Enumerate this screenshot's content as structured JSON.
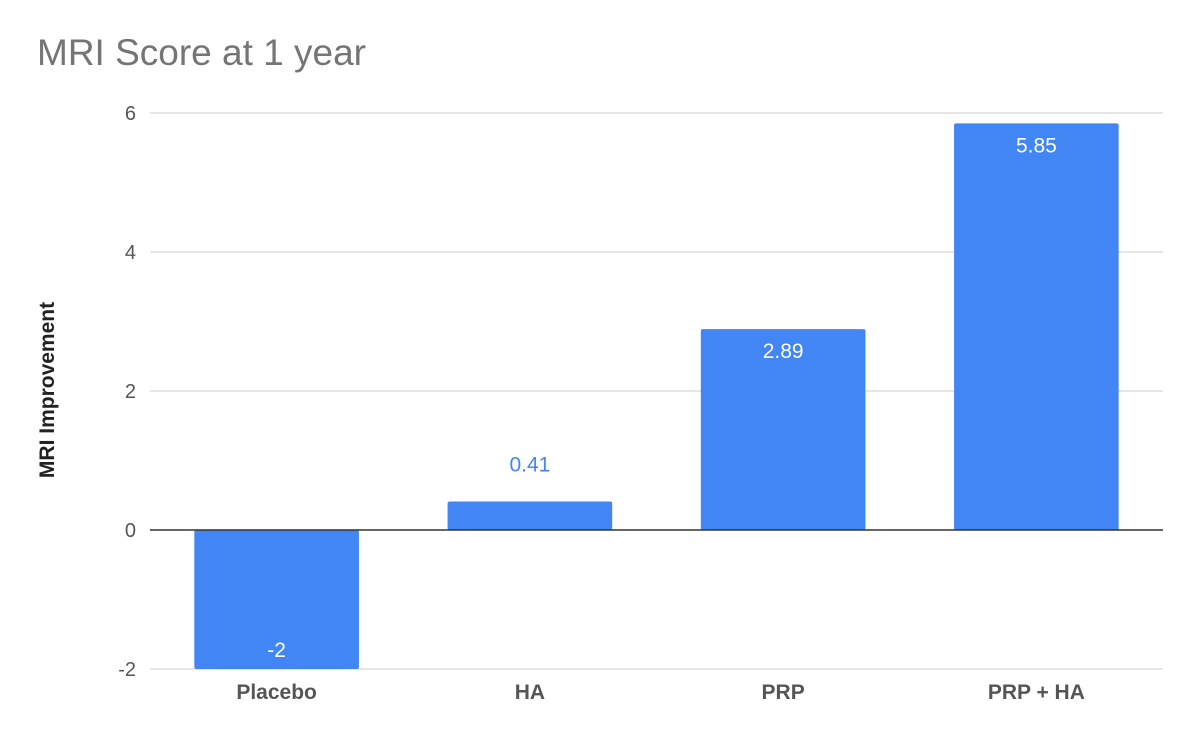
{
  "chart_data": {
    "type": "bar",
    "title": "MRI Score at 1 year",
    "xlabel": "",
    "ylabel": "MRI Improvement",
    "categories": [
      "Placebo",
      "HA",
      "PRP",
      "PRP + HA"
    ],
    "values": [
      -2,
      0.41,
      2.89,
      5.85
    ],
    "value_labels": [
      "-2",
      "0.41",
      "2.89",
      "5.85"
    ],
    "ylim": [
      -2,
      6
    ],
    "yticks": [
      -2,
      0,
      2,
      4,
      6
    ],
    "ytick_labels": [
      "-2",
      "0",
      "2",
      "4",
      "6"
    ],
    "grid": true,
    "legend": "none",
    "colors": {
      "bar": "#4285f4",
      "label_inside": "#ffffff",
      "label_outside": "#4285f4",
      "grid": "#cccccc",
      "zero_line": "#333333"
    }
  }
}
